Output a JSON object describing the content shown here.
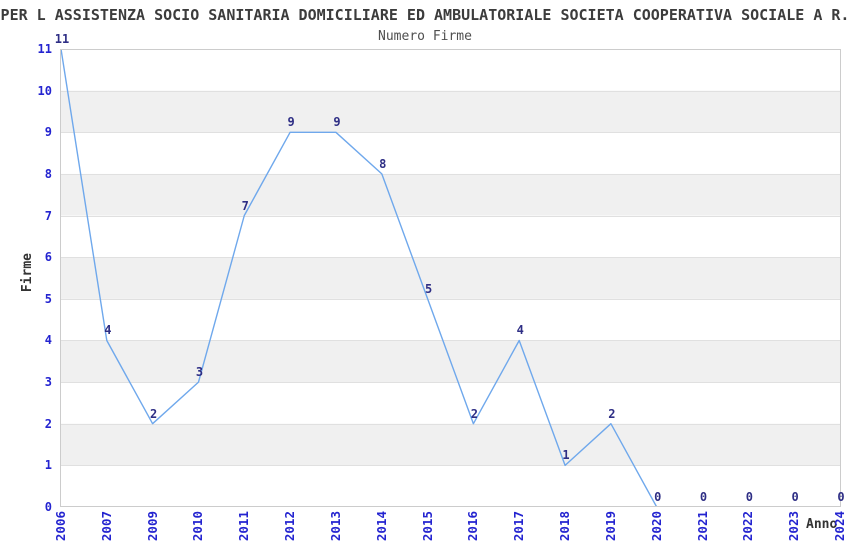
{
  "title": "PER L ASSISTENZA SOCIO SANITARIA DOMICILIARE ED AMBULATORIALE SOCIETA COOPERATIVA SOCIALE A R.",
  "subtitle": "Numero Firme",
  "chart_data": {
    "type": "line",
    "title": "Numero Firme",
    "xlabel": "Anno",
    "ylabel": "Firme",
    "categories": [
      "2006",
      "2007",
      "2009",
      "2010",
      "2011",
      "2012",
      "2013",
      "2014",
      "2015",
      "2016",
      "2017",
      "2018",
      "2019",
      "2020",
      "2021",
      "2022",
      "2023",
      "2024"
    ],
    "values": [
      11,
      4,
      2,
      3,
      7,
      9,
      9,
      8,
      5,
      2,
      4,
      1,
      2,
      0,
      0,
      0,
      0,
      0
    ],
    "ylim": [
      0,
      11
    ],
    "yticks": [
      "0",
      "1",
      "2",
      "3",
      "4",
      "5",
      "6",
      "7",
      "8",
      "9",
      "10",
      "11"
    ],
    "grid": "horizontal-bands",
    "legend_position": "none",
    "data_labels_visible": true,
    "colors": {
      "line": "#6fa8ec",
      "tick_label": "#2424d0",
      "data_label": "#2e2e85",
      "title": "#3c3c3c",
      "subtitle": "#4f4f4f",
      "axis_label": "#333333",
      "band": "#f0f0f0",
      "gridline": "#e0e0e0",
      "border": "#cccccc",
      "background": "#ffffff"
    }
  }
}
